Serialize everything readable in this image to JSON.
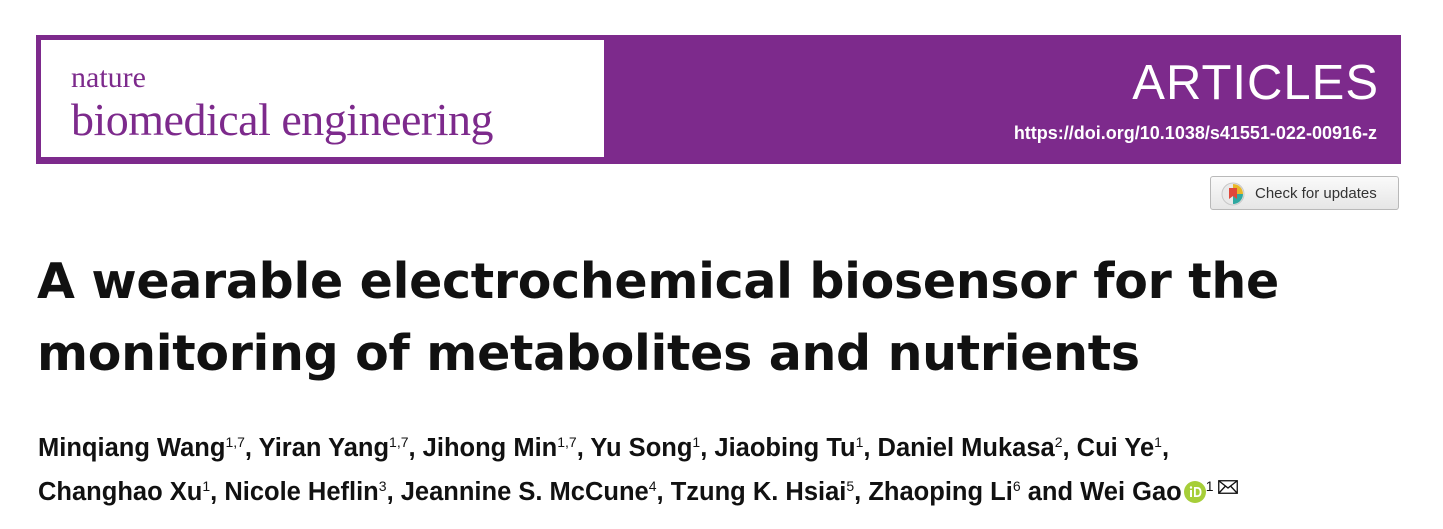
{
  "journal": {
    "name_line1": "nature",
    "name_line2": "biomedical engineering",
    "section": "ARTICLES",
    "doi": "https://doi.org/10.1038/s41551-022-00916-z",
    "brand_color": "#7d2a8c"
  },
  "check_updates": {
    "label": "Check for updates",
    "icon": "check-updates-icon"
  },
  "article": {
    "title_line1": "A wearable electrochemical biosensor for the",
    "title_line2": "monitoring of metabolites and nutrients"
  },
  "authors": [
    {
      "name": "Minqiang Wang",
      "aff": "1,7"
    },
    {
      "name": "Yiran Yang",
      "aff": "1,7"
    },
    {
      "name": "Jihong Min",
      "aff": "1,7"
    },
    {
      "name": "Yu Song",
      "aff": "1"
    },
    {
      "name": "Jiaobing Tu",
      "aff": "1"
    },
    {
      "name": "Daniel Mukasa",
      "aff": "2"
    },
    {
      "name": "Cui Ye",
      "aff": "1"
    },
    {
      "name": "Changhao Xu",
      "aff": "1"
    },
    {
      "name": "Nicole Heflin",
      "aff": "3"
    },
    {
      "name": "Jeannine S. McCune",
      "aff": "4"
    },
    {
      "name": "Tzung K. Hsiai",
      "aff": "5"
    },
    {
      "name": "Zhaoping Li",
      "aff": "6"
    },
    {
      "name": "Wei Gao",
      "aff": "1",
      "orcid_icon": "orcid-icon",
      "contact_icon": "envelope-icon"
    }
  ],
  "authors_connector": "and"
}
